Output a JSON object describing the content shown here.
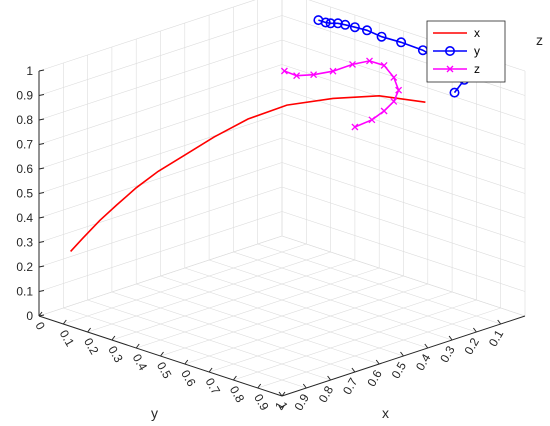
{
  "chart_data": {
    "type": "line3d",
    "xlabel": "x",
    "ylabel": "y",
    "zlabel": "z",
    "xlim": [
      0,
      1
    ],
    "ylim": [
      0,
      1
    ],
    "zlim": [
      0,
      1
    ],
    "x_ticks": [
      "0.1",
      "0.2",
      "0.3",
      "0.4",
      "0.5",
      "0.6",
      "0.7",
      "0.8",
      "0.9",
      "1"
    ],
    "y_ticks": [
      "0",
      "0.1",
      "0.2",
      "0.3",
      "0.4",
      "0.5",
      "0.6",
      "0.7",
      "0.8",
      "0.9",
      "1"
    ],
    "z_ticks": [
      "0",
      "0.1",
      "0.2",
      "0.3",
      "0.4",
      "0.5",
      "0.6",
      "0.7",
      "0.8",
      "0.9",
      "1"
    ],
    "grid": true,
    "legend_position": "top-right",
    "series": [
      {
        "name": "x",
        "color": "#ff0000",
        "marker": "none",
        "points": [
          [
            0.96,
            0.09,
            0.28
          ],
          [
            0.93,
            0.11,
            0.33
          ],
          [
            0.89,
            0.14,
            0.4
          ],
          [
            0.85,
            0.17,
            0.46
          ],
          [
            0.81,
            0.21,
            0.53
          ],
          [
            0.77,
            0.26,
            0.6
          ],
          [
            0.72,
            0.32,
            0.67
          ],
          [
            0.67,
            0.39,
            0.75
          ],
          [
            0.61,
            0.47,
            0.83
          ],
          [
            0.55,
            0.57,
            0.9
          ],
          [
            0.49,
            0.7,
            0.95
          ],
          [
            0.44,
            0.84,
            0.99
          ],
          [
            0.4,
            0.99,
            1.0
          ]
        ]
      },
      {
        "name": "y",
        "color": "#0000ff",
        "marker": "circle",
        "points": [
          [
            0.0,
            0.15,
            0.93
          ],
          [
            0.0,
            0.18,
            0.93
          ],
          [
            0.01,
            0.21,
            0.94
          ],
          [
            0.01,
            0.24,
            0.95
          ],
          [
            0.02,
            0.28,
            0.96
          ],
          [
            0.03,
            0.33,
            0.97
          ],
          [
            0.04,
            0.39,
            0.98
          ],
          [
            0.05,
            0.46,
            0.98
          ],
          [
            0.06,
            0.55,
            0.99
          ],
          [
            0.08,
            0.66,
            1.0
          ],
          [
            0.12,
            0.8,
            1.0
          ],
          [
            0.18,
            0.93,
            1.0
          ],
          [
            0.28,
            0.99,
            1.0
          ]
        ]
      },
      {
        "name": "z",
        "color": "#ff00ff",
        "marker": "x",
        "points": [
          [
            0.02,
            0.03,
            0.69
          ],
          [
            0.04,
            0.1,
            0.7
          ],
          [
            0.06,
            0.19,
            0.74
          ],
          [
            0.09,
            0.3,
            0.8
          ],
          [
            0.13,
            0.42,
            0.88
          ],
          [
            0.18,
            0.54,
            0.95
          ],
          [
            0.24,
            0.66,
            0.99
          ],
          [
            0.31,
            0.77,
            1.0
          ],
          [
            0.38,
            0.86,
            1.0
          ],
          [
            0.46,
            0.92,
            1.0
          ],
          [
            0.54,
            0.96,
            1.0
          ],
          [
            0.62,
            0.99,
            1.0
          ],
          [
            0.7,
            1.0,
            1.0
          ]
        ]
      }
    ]
  }
}
